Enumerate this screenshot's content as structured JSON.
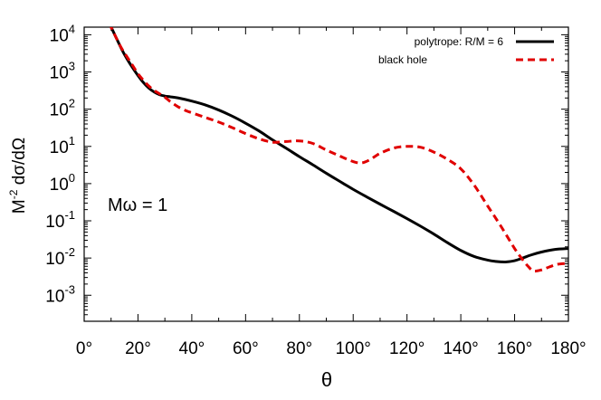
{
  "chart_data": {
    "type": "line",
    "xlabel": "θ",
    "ylabel_main": "M",
    "ylabel_sup": "-2",
    "ylabel_rest": " dσ/dΩ",
    "annotation": "Mω = 1",
    "x_scale": "linear",
    "y_scale": "log",
    "xlim": [
      0,
      180
    ],
    "ylim": [
      0.0002,
      16000
    ],
    "x_ticks": [
      {
        "value": 0,
        "label": "0°"
      },
      {
        "value": 20,
        "label": "20°"
      },
      {
        "value": 40,
        "label": "40°"
      },
      {
        "value": 60,
        "label": "60°"
      },
      {
        "value": 80,
        "label": "80°"
      },
      {
        "value": 100,
        "label": "100°"
      },
      {
        "value": 120,
        "label": "120°"
      },
      {
        "value": 140,
        "label": "140°"
      },
      {
        "value": 160,
        "label": "160°"
      },
      {
        "value": 180,
        "label": "180°"
      }
    ],
    "y_ticks": [
      {
        "value": 10000,
        "base": "10",
        "exp": "4"
      },
      {
        "value": 1000,
        "base": "10",
        "exp": "3"
      },
      {
        "value": 100,
        "base": "10",
        "exp": "2"
      },
      {
        "value": 10,
        "base": "10",
        "exp": "1"
      },
      {
        "value": 1,
        "base": "10",
        "exp": "0"
      },
      {
        "value": 0.1,
        "base": "10",
        "exp": "-1"
      },
      {
        "value": 0.01,
        "base": "10",
        "exp": "-2"
      },
      {
        "value": 0.001,
        "base": "10",
        "exp": "-3"
      }
    ],
    "grid": false,
    "legend_position": "top-right",
    "series": [
      {
        "name": "polytrope: R/M = 6",
        "color": "#000000",
        "dash": "solid",
        "x": [
          9,
          10,
          12,
          14,
          16,
          18,
          20,
          22,
          24,
          26,
          28,
          30,
          32,
          35,
          40,
          45,
          50,
          55,
          60,
          65,
          70,
          75,
          80,
          85,
          90,
          95,
          100,
          105,
          110,
          115,
          120,
          125,
          130,
          135,
          140,
          145,
          150,
          153,
          155,
          157,
          160,
          163,
          166,
          170,
          175,
          180
        ],
        "y": [
          20000,
          16000,
          8000,
          4000,
          2200,
          1300,
          800,
          520,
          370,
          290,
          245,
          225,
          215,
          200,
          165,
          130,
          95,
          65,
          42,
          26,
          15,
          9,
          5.3,
          3.2,
          1.9,
          1.15,
          0.7,
          0.44,
          0.28,
          0.18,
          0.115,
          0.072,
          0.044,
          0.026,
          0.016,
          0.011,
          0.0088,
          0.0081,
          0.0079,
          0.0079,
          0.0085,
          0.01,
          0.012,
          0.0145,
          0.017,
          0.018
        ]
      },
      {
        "name": "black hole",
        "color": "#e00000",
        "dash": "dashed",
        "x": [
          9,
          10,
          12,
          14,
          16,
          18,
          20,
          22,
          24,
          26,
          28,
          30,
          32,
          35,
          38,
          40,
          45,
          50,
          55,
          60,
          65,
          70,
          75,
          80,
          85,
          90,
          95,
          100,
          103,
          106,
          110,
          115,
          120,
          125,
          130,
          135,
          140,
          145,
          150,
          155,
          160,
          163,
          165,
          167,
          170,
          173,
          176,
          180
        ],
        "y": [
          20000,
          16000,
          8000,
          4200,
          2500,
          1500,
          900,
          600,
          420,
          320,
          260,
          210,
          160,
          115,
          90,
          80,
          60,
          45,
          32,
          22,
          16,
          13,
          13.5,
          14,
          12,
          8,
          5.5,
          3.9,
          3.6,
          4.3,
          6.5,
          9,
          10,
          9.5,
          7,
          4.5,
          2.5,
          0.9,
          0.25,
          0.07,
          0.018,
          0.009,
          0.006,
          0.0045,
          0.0048,
          0.0058,
          0.0068,
          0.0072
        ]
      }
    ]
  }
}
